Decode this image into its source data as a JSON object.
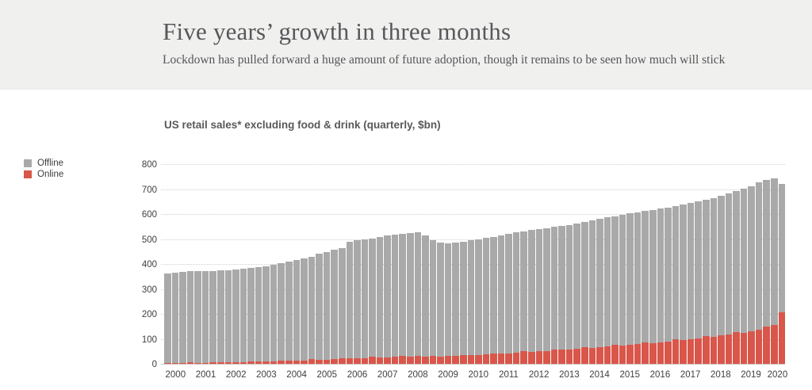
{
  "header": {
    "title": "Five years’ growth in three months",
    "subtitle": "Lockdown has pulled forward a huge amount of future adoption, though it remains to be seen how much will stick",
    "background": "#f0f0ee"
  },
  "chart": {
    "title": "US retail sales* excluding food & drink (quarterly, $bn)",
    "legend": [
      {
        "label": "Offline",
        "color": "#a9a9a9"
      },
      {
        "label": "Online",
        "color": "#d9564a"
      }
    ]
  },
  "chart_data": {
    "type": "bar",
    "stacked": true,
    "title": "US retail sales* excluding food & drink (quarterly, $bn)",
    "x_unit": "quarter",
    "years": [
      2000,
      2001,
      2002,
      2003,
      2004,
      2005,
      2006,
      2007,
      2008,
      2009,
      2010,
      2011,
      2012,
      2013,
      2014,
      2015,
      2016,
      2017,
      2018,
      2019,
      2020
    ],
    "last_year_quarters": 2,
    "ylim": [
      0,
      800
    ],
    "yticks": [
      0,
      100,
      200,
      300,
      400,
      500,
      600,
      700,
      800
    ],
    "grid": "dotted-horizontal",
    "legend_position": "left",
    "series": [
      {
        "name": "Online",
        "color": "#d9564a",
        "values": [
          5,
          5,
          6,
          8,
          7,
          7,
          8,
          10,
          9,
          10,
          10,
          13,
          12,
          13,
          14,
          17,
          15,
          16,
          17,
          21,
          19,
          20,
          21,
          26,
          24,
          25,
          26,
          31,
          29,
          30,
          31,
          36,
          33,
          34,
          33,
          36,
          33,
          34,
          35,
          39,
          38,
          39,
          40,
          45,
          44,
          46,
          47,
          53,
          51,
          53,
          55,
          61,
          59,
          61,
          63,
          70,
          68,
          70,
          72,
          79,
          77,
          80,
          82,
          89,
          87,
          90,
          93,
          101,
          98,
          102,
          105,
          114,
          112,
          116,
          120,
          130,
          128,
          133,
          139,
          152,
          160,
          210
        ]
      },
      {
        "name": "Offline",
        "color": "#a9a9a9",
        "values": [
          359,
          363,
          365,
          366,
          367,
          369,
          367,
          368,
          369,
          371,
          374,
          374,
          377,
          381,
          386,
          389,
          397,
          403,
          409,
          412,
          425,
          432,
          439,
          442,
          468,
          472,
          475,
          473,
          483,
          487,
          490,
          488,
          494,
          496,
          483,
          464,
          456,
          452,
          454,
          454,
          459,
          463,
          467,
          467,
          474,
          478,
          482,
          481,
          488,
          490,
          492,
          490,
          496,
          499,
          502,
          501,
          509,
          513,
          517,
          516,
          524,
          526,
          529,
          526,
          532,
          534,
          536,
          533,
          542,
          545,
          549,
          547,
          556,
          561,
          566,
          565,
          577,
          582,
          592,
          587,
          586,
          514
        ]
      }
    ]
  }
}
